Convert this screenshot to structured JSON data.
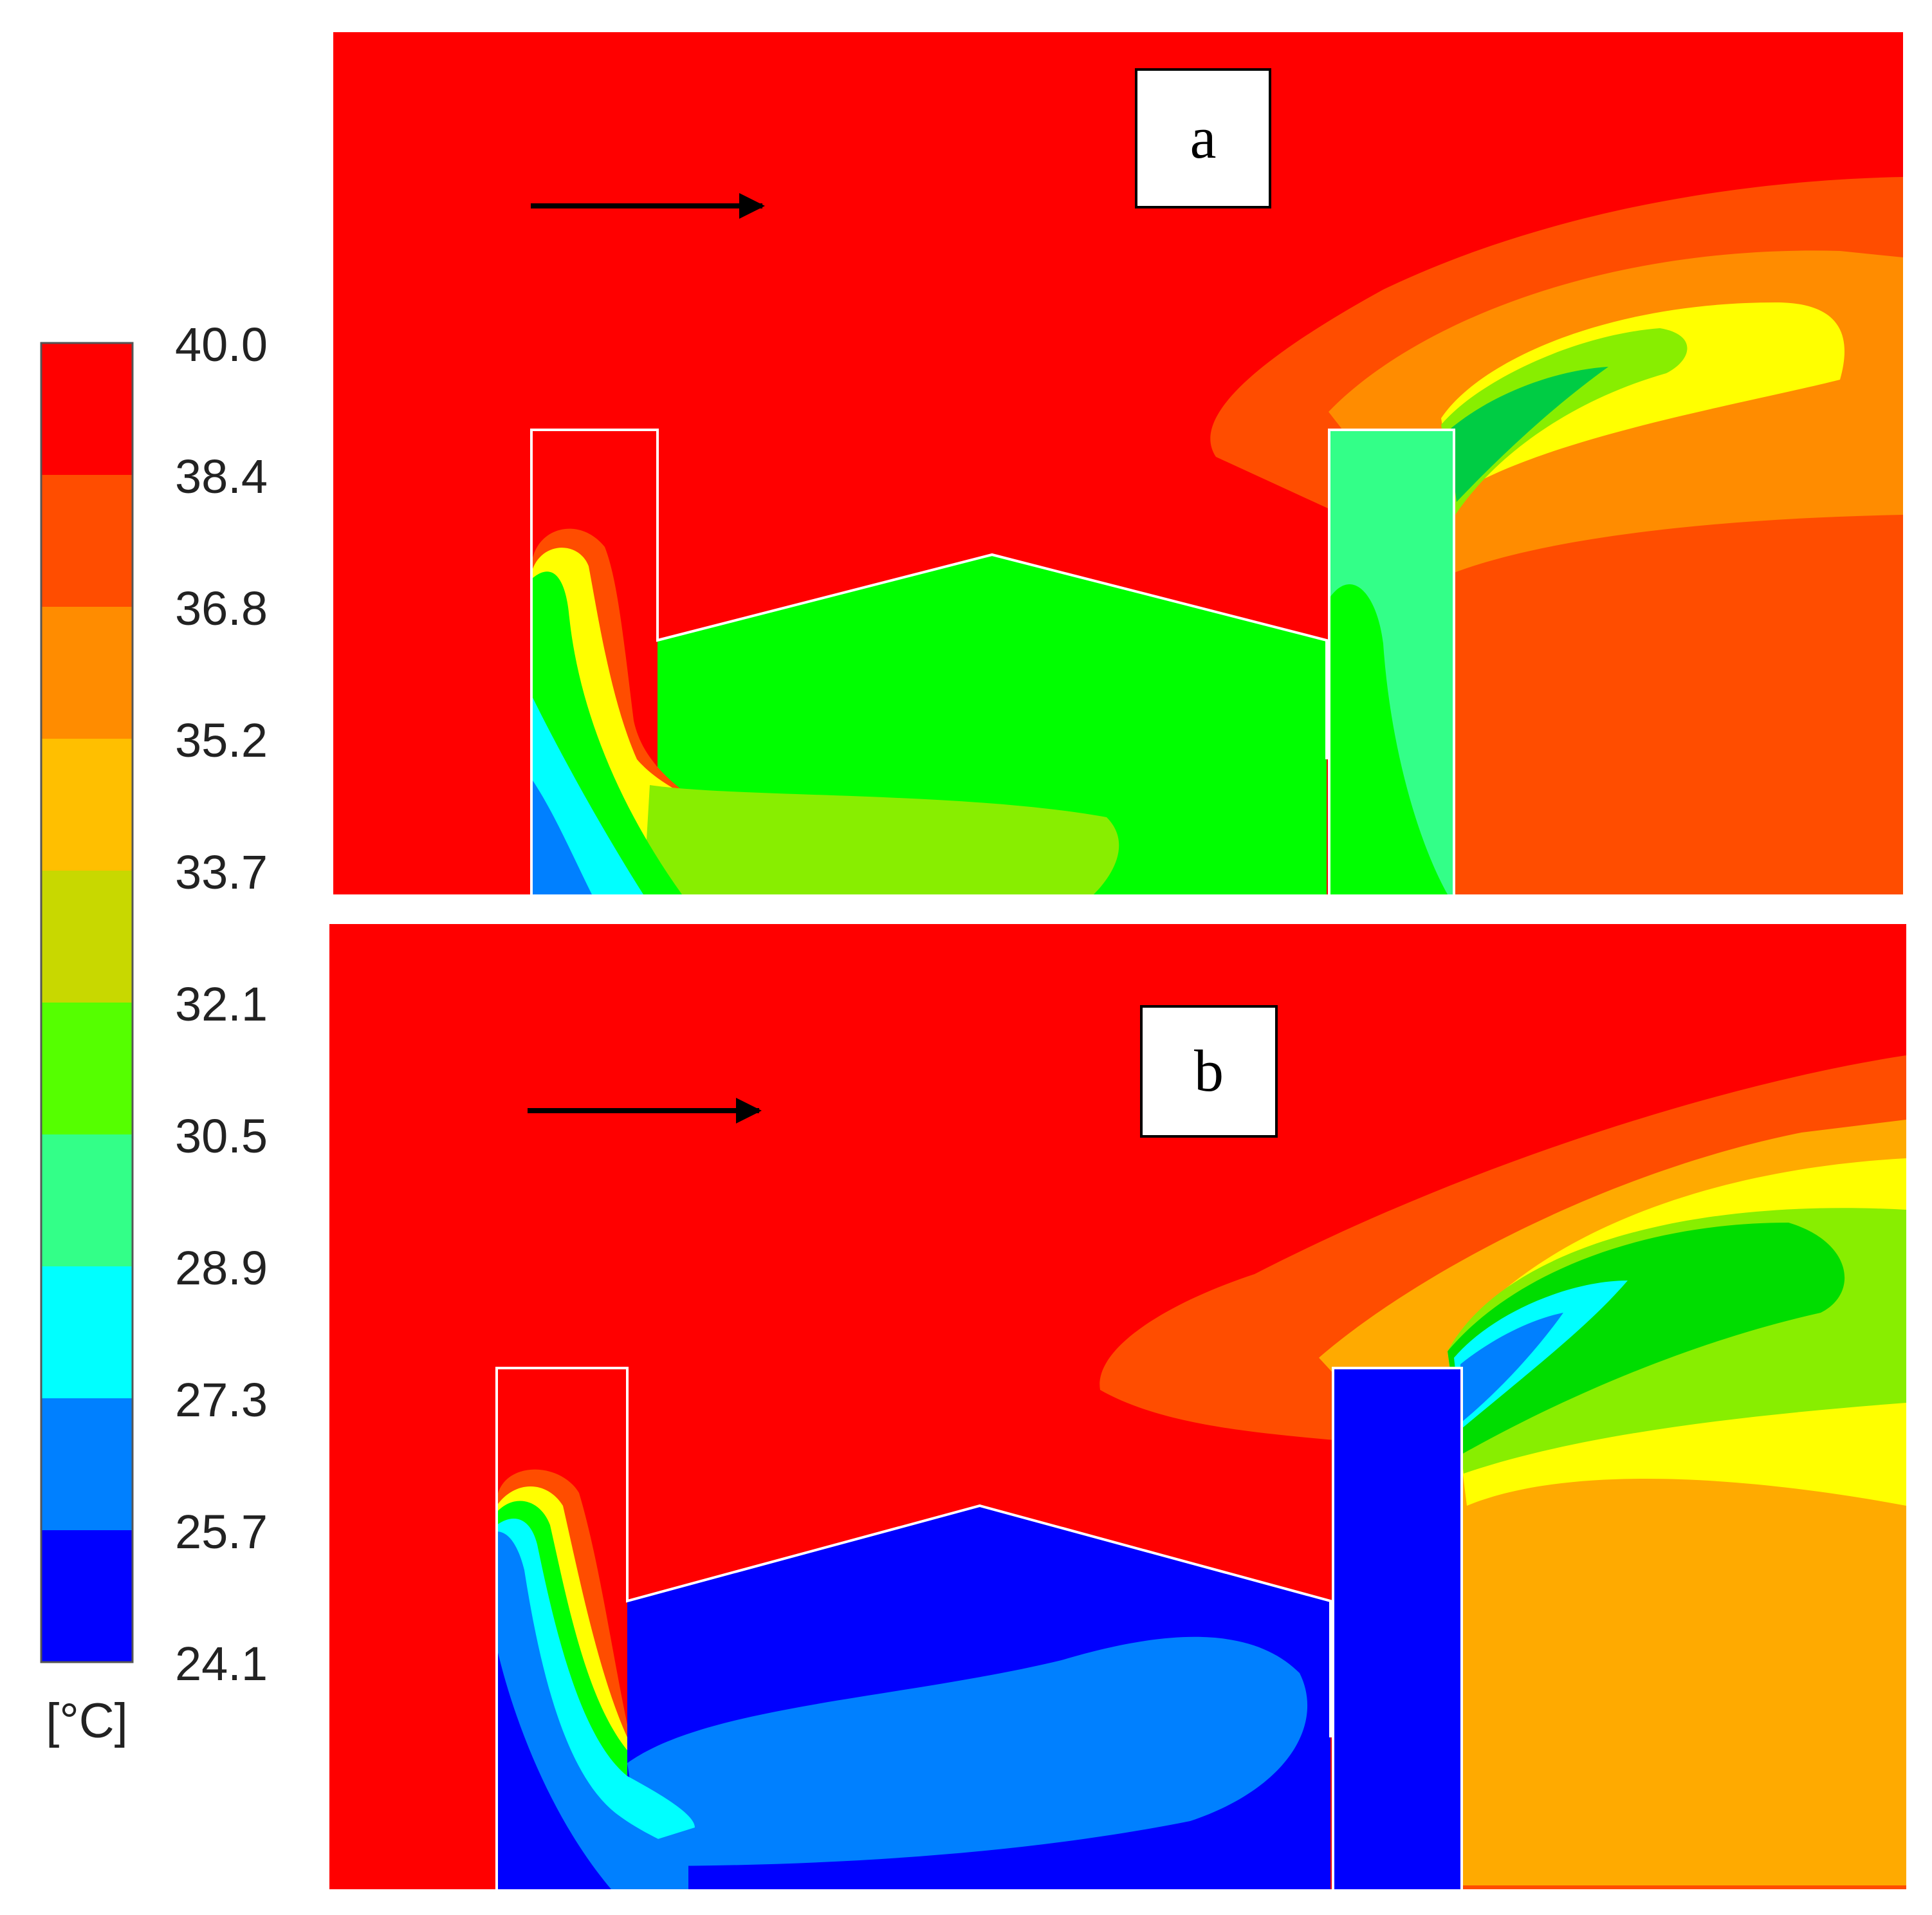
{
  "legend": {
    "ticks": [
      "40.0",
      "38.4",
      "36.8",
      "35.2",
      "33.7",
      "32.1",
      "30.5",
      "28.9",
      "27.3",
      "25.7",
      "24.1"
    ],
    "unit": "[°C]",
    "colors": [
      "#ff0000",
      "#ff4d00",
      "#ff8c00",
      "#ffbf00",
      "#c8d800",
      "#55ff00",
      "#33ff88",
      "#00ffff",
      "#0080ff",
      "#0000ff"
    ]
  },
  "panels": [
    {
      "label": "a"
    },
    {
      "label": "b"
    }
  ]
}
